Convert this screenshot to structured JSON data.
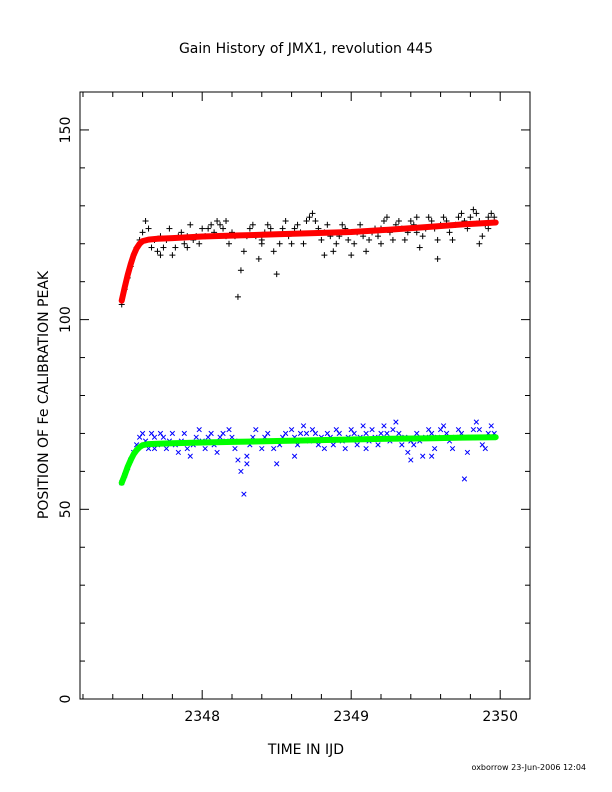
{
  "chart_data": {
    "type": "scatter",
    "title": "Gain History of JMX1, revolution 445",
    "xlabel": "TIME IN IJD",
    "ylabel": "POSITION OF Fe CALIBRATION PEAK",
    "xlim": [
      2347.18,
      2350.2
    ],
    "ylim": [
      0,
      160
    ],
    "x_ticks": [
      2348,
      2349,
      2350
    ],
    "y_ticks": [
      0,
      50,
      100,
      150
    ],
    "grid": false,
    "series": [
      {
        "marker": "+",
        "color": "#000000",
        "points": [
          [
            2347.46,
            104
          ],
          [
            2347.48,
            108
          ],
          [
            2347.5,
            111
          ],
          [
            2347.52,
            114
          ],
          [
            2347.54,
            117
          ],
          [
            2347.56,
            119
          ],
          [
            2347.58,
            121
          ],
          [
            2347.6,
            123
          ],
          [
            2347.62,
            126
          ],
          [
            2347.64,
            124
          ],
          [
            2347.66,
            119
          ],
          [
            2347.68,
            121
          ],
          [
            2347.7,
            118
          ],
          [
            2347.72,
            122
          ],
          [
            2347.74,
            119
          ],
          [
            2347.76,
            121
          ],
          [
            2347.78,
            124
          ],
          [
            2347.8,
            117
          ],
          [
            2347.82,
            119
          ],
          [
            2347.84,
            122
          ],
          [
            2347.86,
            123
          ],
          [
            2347.88,
            120
          ],
          [
            2347.9,
            122
          ],
          [
            2347.92,
            125
          ],
          [
            2347.94,
            121
          ],
          [
            2347.96,
            122
          ],
          [
            2347.98,
            120
          ],
          [
            2348.0,
            124
          ],
          [
            2348.02,
            122
          ],
          [
            2348.04,
            124
          ],
          [
            2348.06,
            125
          ],
          [
            2348.08,
            123
          ],
          [
            2348.1,
            126
          ],
          [
            2348.12,
            125
          ],
          [
            2348.14,
            124
          ],
          [
            2348.16,
            126
          ],
          [
            2348.18,
            120
          ],
          [
            2348.2,
            123
          ],
          [
            2348.22,
            122
          ],
          [
            2348.24,
            106
          ],
          [
            2348.26,
            113
          ],
          [
            2348.28,
            118
          ],
          [
            2348.3,
            122
          ],
          [
            2348.32,
            124
          ],
          [
            2348.34,
            125
          ],
          [
            2348.36,
            122
          ],
          [
            2348.38,
            116
          ],
          [
            2348.4,
            120
          ],
          [
            2348.42,
            123
          ],
          [
            2348.44,
            125
          ],
          [
            2348.46,
            124
          ],
          [
            2348.48,
            118
          ],
          [
            2348.5,
            112
          ],
          [
            2348.52,
            120
          ],
          [
            2348.54,
            124
          ],
          [
            2348.56,
            126
          ],
          [
            2348.58,
            122
          ],
          [
            2348.6,
            120
          ],
          [
            2348.62,
            124
          ],
          [
            2348.64,
            125
          ],
          [
            2348.66,
            123
          ],
          [
            2348.68,
            120
          ],
          [
            2348.7,
            126
          ],
          [
            2348.72,
            127
          ],
          [
            2348.74,
            128
          ],
          [
            2348.76,
            126
          ],
          [
            2348.78,
            124
          ],
          [
            2348.8,
            121
          ],
          [
            2348.82,
            123
          ],
          [
            2348.84,
            125
          ],
          [
            2348.86,
            122
          ],
          [
            2348.88,
            118
          ],
          [
            2348.9,
            120
          ],
          [
            2348.92,
            122
          ],
          [
            2348.94,
            125
          ],
          [
            2348.96,
            124
          ],
          [
            2348.98,
            121
          ],
          [
            2349.0,
            117
          ],
          [
            2349.02,
            120
          ],
          [
            2349.04,
            123
          ],
          [
            2349.06,
            125
          ],
          [
            2349.08,
            122
          ],
          [
            2349.1,
            118
          ],
          [
            2349.12,
            121
          ],
          [
            2349.14,
            123
          ],
          [
            2349.16,
            124
          ],
          [
            2349.18,
            122
          ],
          [
            2349.2,
            124
          ],
          [
            2349.22,
            126
          ],
          [
            2349.24,
            127
          ],
          [
            2349.26,
            123
          ],
          [
            2349.28,
            121
          ],
          [
            2349.3,
            125
          ],
          [
            2349.32,
            126
          ],
          [
            2349.34,
            124
          ],
          [
            2349.36,
            121
          ],
          [
            2349.38,
            123
          ],
          [
            2349.4,
            126
          ],
          [
            2349.42,
            125
          ],
          [
            2349.44,
            123
          ],
          [
            2349.46,
            119
          ],
          [
            2349.48,
            122
          ],
          [
            2349.5,
            124
          ],
          [
            2349.52,
            127
          ],
          [
            2349.54,
            126
          ],
          [
            2349.56,
            124
          ],
          [
            2349.58,
            121
          ],
          [
            2349.6,
            125
          ],
          [
            2349.62,
            127
          ],
          [
            2349.64,
            126
          ],
          [
            2349.66,
            123
          ],
          [
            2349.68,
            121
          ],
          [
            2349.7,
            125
          ],
          [
            2349.72,
            127
          ],
          [
            2349.74,
            128
          ],
          [
            2349.76,
            126
          ],
          [
            2349.78,
            124
          ],
          [
            2349.8,
            127
          ],
          [
            2349.82,
            129
          ],
          [
            2349.84,
            128
          ],
          [
            2349.86,
            126
          ],
          [
            2349.88,
            122
          ],
          [
            2349.9,
            125
          ],
          [
            2349.92,
            127
          ],
          [
            2349.94,
            128
          ],
          [
            2349.96,
            127
          ],
          [
            2347.72,
            117
          ],
          [
            2347.9,
            119
          ],
          [
            2348.4,
            121
          ],
          [
            2348.82,
            117
          ],
          [
            2349.2,
            120
          ],
          [
            2349.58,
            116
          ],
          [
            2349.86,
            120
          ],
          [
            2348.16,
            122
          ],
          [
            2349.44,
            127
          ],
          [
            2349.92,
            124
          ]
        ]
      },
      {
        "marker": "x",
        "color": "#0000ff",
        "points": [
          [
            2347.46,
            57
          ],
          [
            2347.48,
            59
          ],
          [
            2347.5,
            61
          ],
          [
            2347.52,
            63
          ],
          [
            2347.54,
            65
          ],
          [
            2347.56,
            67
          ],
          [
            2347.58,
            69
          ],
          [
            2347.6,
            70
          ],
          [
            2347.62,
            68
          ],
          [
            2347.64,
            66
          ],
          [
            2347.66,
            70
          ],
          [
            2347.68,
            69
          ],
          [
            2347.7,
            67
          ],
          [
            2347.72,
            70
          ],
          [
            2347.74,
            69
          ],
          [
            2347.76,
            66
          ],
          [
            2347.78,
            68
          ],
          [
            2347.8,
            70
          ],
          [
            2347.82,
            67
          ],
          [
            2347.84,
            65
          ],
          [
            2347.86,
            68
          ],
          [
            2347.88,
            70
          ],
          [
            2347.9,
            66
          ],
          [
            2347.92,
            64
          ],
          [
            2347.94,
            67
          ],
          [
            2347.96,
            69
          ],
          [
            2347.98,
            71
          ],
          [
            2348.0,
            68
          ],
          [
            2348.02,
            66
          ],
          [
            2348.04,
            69
          ],
          [
            2348.06,
            70
          ],
          [
            2348.08,
            67
          ],
          [
            2348.1,
            65
          ],
          [
            2348.12,
            69
          ],
          [
            2348.14,
            70
          ],
          [
            2348.16,
            68
          ],
          [
            2348.18,
            71
          ],
          [
            2348.2,
            69
          ],
          [
            2348.22,
            66
          ],
          [
            2348.24,
            63
          ],
          [
            2348.26,
            60
          ],
          [
            2348.28,
            54
          ],
          [
            2348.3,
            64
          ],
          [
            2348.32,
            67
          ],
          [
            2348.34,
            69
          ],
          [
            2348.36,
            71
          ],
          [
            2348.38,
            68
          ],
          [
            2348.4,
            66
          ],
          [
            2348.42,
            69
          ],
          [
            2348.44,
            70
          ],
          [
            2348.46,
            68
          ],
          [
            2348.48,
            66
          ],
          [
            2348.5,
            62
          ],
          [
            2348.52,
            67
          ],
          [
            2348.54,
            69
          ],
          [
            2348.56,
            70
          ],
          [
            2348.58,
            68
          ],
          [
            2348.6,
            71
          ],
          [
            2348.62,
            69
          ],
          [
            2348.64,
            67
          ],
          [
            2348.66,
            70
          ],
          [
            2348.68,
            72
          ],
          [
            2348.7,
            70
          ],
          [
            2348.72,
            68
          ],
          [
            2348.74,
            71
          ],
          [
            2348.76,
            70
          ],
          [
            2348.78,
            67
          ],
          [
            2348.8,
            69
          ],
          [
            2348.82,
            66
          ],
          [
            2348.84,
            70
          ],
          [
            2348.86,
            69
          ],
          [
            2348.88,
            67
          ],
          [
            2348.9,
            71
          ],
          [
            2348.92,
            70
          ],
          [
            2348.94,
            68
          ],
          [
            2348.96,
            66
          ],
          [
            2348.98,
            69
          ],
          [
            2349.0,
            71
          ],
          [
            2349.02,
            70
          ],
          [
            2349.04,
            67
          ],
          [
            2349.06,
            69
          ],
          [
            2349.08,
            72
          ],
          [
            2349.1,
            70
          ],
          [
            2349.12,
            68
          ],
          [
            2349.14,
            71
          ],
          [
            2349.16,
            69
          ],
          [
            2349.18,
            67
          ],
          [
            2349.2,
            70
          ],
          [
            2349.22,
            72
          ],
          [
            2349.24,
            70
          ],
          [
            2349.26,
            68
          ],
          [
            2349.28,
            71
          ],
          [
            2349.3,
            73
          ],
          [
            2349.32,
            70
          ],
          [
            2349.34,
            67
          ],
          [
            2349.36,
            69
          ],
          [
            2349.38,
            65
          ],
          [
            2349.4,
            63
          ],
          [
            2349.42,
            67
          ],
          [
            2349.44,
            70
          ],
          [
            2349.46,
            68
          ],
          [
            2349.48,
            64
          ],
          [
            2349.5,
            69
          ],
          [
            2349.52,
            71
          ],
          [
            2349.54,
            70
          ],
          [
            2349.56,
            66
          ],
          [
            2349.58,
            69
          ],
          [
            2349.6,
            71
          ],
          [
            2349.62,
            72
          ],
          [
            2349.64,
            70
          ],
          [
            2349.66,
            68
          ],
          [
            2349.68,
            66
          ],
          [
            2349.7,
            69
          ],
          [
            2349.72,
            71
          ],
          [
            2349.74,
            70
          ],
          [
            2349.76,
            58
          ],
          [
            2349.78,
            65
          ],
          [
            2349.8,
            69
          ],
          [
            2349.82,
            71
          ],
          [
            2349.84,
            73
          ],
          [
            2349.86,
            71
          ],
          [
            2349.88,
            69
          ],
          [
            2349.9,
            66
          ],
          [
            2349.92,
            70
          ],
          [
            2349.94,
            72
          ],
          [
            2349.96,
            70
          ],
          [
            2347.68,
            66
          ],
          [
            2348.22,
            68
          ],
          [
            2348.62,
            64
          ],
          [
            2349.1,
            66
          ],
          [
            2349.54,
            64
          ],
          [
            2349.88,
            67
          ],
          [
            2348.3,
            62
          ],
          [
            2349.4,
            68
          ]
        ]
      },
      {
        "type": "line",
        "color": "#ff0000",
        "points": [
          [
            2347.46,
            105
          ],
          [
            2347.48,
            108.5
          ],
          [
            2347.5,
            111.8
          ],
          [
            2347.52,
            114.6
          ],
          [
            2347.54,
            117
          ],
          [
            2347.56,
            118.8
          ],
          [
            2347.58,
            120
          ],
          [
            2347.6,
            120.7
          ],
          [
            2347.64,
            121.1
          ],
          [
            2347.7,
            121.3
          ],
          [
            2347.8,
            121.5
          ],
          [
            2348.0,
            121.9
          ],
          [
            2348.25,
            122.2
          ],
          [
            2348.5,
            122.5
          ],
          [
            2348.75,
            122.8
          ],
          [
            2349.0,
            123.1
          ],
          [
            2349.25,
            123.7
          ],
          [
            2349.5,
            124.4
          ],
          [
            2349.75,
            125.1
          ],
          [
            2349.97,
            125.6
          ]
        ]
      },
      {
        "type": "line",
        "color": "#00ff00",
        "points": [
          [
            2347.46,
            57
          ],
          [
            2347.48,
            59
          ],
          [
            2347.5,
            61.2
          ],
          [
            2347.52,
            63
          ],
          [
            2347.54,
            64.5
          ],
          [
            2347.56,
            65.6
          ],
          [
            2347.58,
            66.4
          ],
          [
            2347.6,
            66.9
          ],
          [
            2347.64,
            67.2
          ],
          [
            2347.7,
            67.3
          ],
          [
            2347.8,
            67.4
          ],
          [
            2348.0,
            67.6
          ],
          [
            2348.25,
            67.8
          ],
          [
            2348.5,
            68
          ],
          [
            2348.75,
            68.2
          ],
          [
            2349.0,
            68.4
          ],
          [
            2349.25,
            68.6
          ],
          [
            2349.5,
            68.7
          ],
          [
            2349.75,
            68.9
          ],
          [
            2349.97,
            69
          ]
        ]
      }
    ]
  },
  "footer": "oxborrow 23-Jun-2006 12:04"
}
